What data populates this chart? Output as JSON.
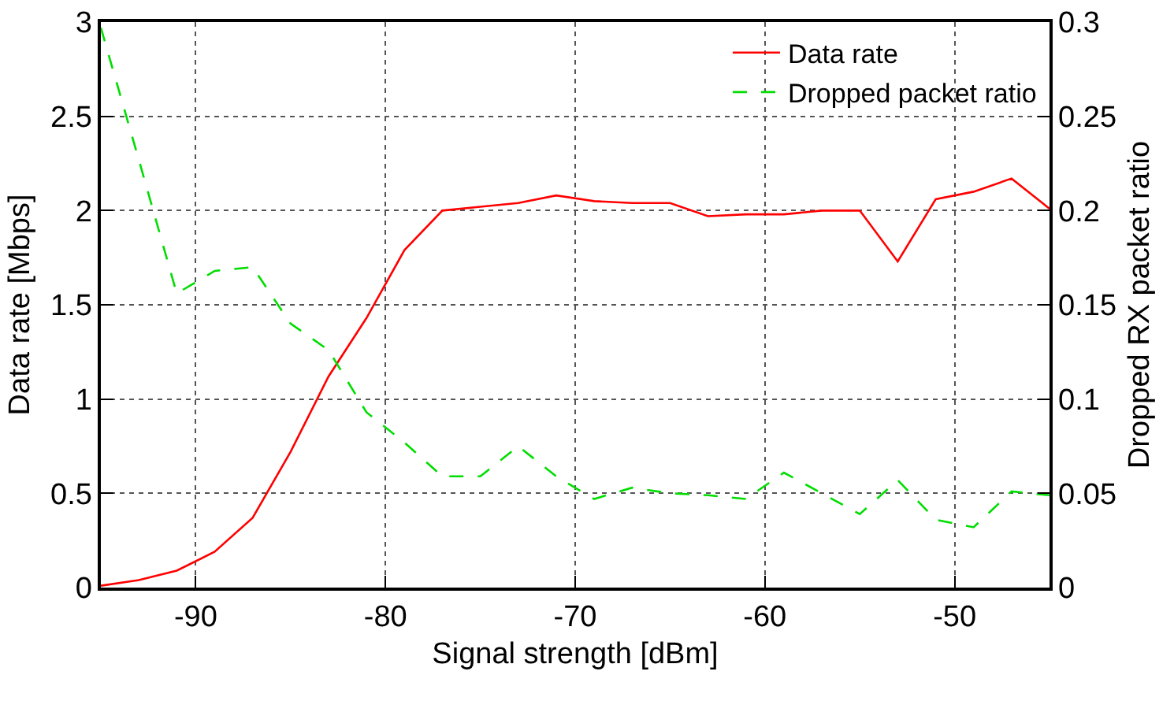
{
  "chart_data": {
    "type": "line",
    "x": [
      -95,
      -93,
      -91,
      -89,
      -87,
      -85,
      -83,
      -81,
      -79,
      -77,
      -75,
      -73,
      -71,
      -69,
      -67,
      -65,
      -63,
      -61,
      -59,
      -57,
      -55,
      -53,
      -51,
      -49,
      -47,
      -45
    ],
    "series": [
      {
        "name": "Data rate",
        "color": "#ff0000",
        "line_style": "solid",
        "values": [
          0.01,
          0.04,
          0.09,
          0.19,
          0.37,
          0.72,
          1.12,
          1.43,
          1.79,
          2.0,
          2.02,
          2.04,
          2.08,
          2.05,
          2.04,
          2.04,
          1.97,
          1.98,
          1.98,
          2.0,
          2.0,
          1.73,
          2.06,
          2.1,
          2.17,
          2.01
        ]
      },
      {
        "name": "Dropped packet ratio",
        "color": "#00dd00",
        "line_style": "dashed",
        "axis": "y2",
        "values": [
          0.297,
          0.227,
          0.156,
          0.168,
          0.17,
          0.14,
          0.126,
          0.093,
          0.077,
          0.059,
          0.059,
          0.075,
          0.059,
          0.047,
          0.053,
          0.05,
          0.049,
          0.047,
          0.061,
          0.05,
          0.039,
          0.057,
          0.036,
          0.032,
          0.051,
          0.049
        ]
      }
    ],
    "xlabel": "Signal strength [dBm]",
    "ylabel": "Data rate [Mbps]",
    "y2label": "Dropped RX packet ratio",
    "xlim": [
      -95,
      -45
    ],
    "xticks": [
      -90,
      -80,
      -70,
      -60,
      -50
    ],
    "ylim": [
      0,
      3
    ],
    "yticks": [
      0,
      0.5,
      1,
      1.5,
      2,
      2.5,
      3
    ],
    "y2lim": [
      0,
      0.3
    ],
    "y2ticks": [
      0,
      0.05,
      0.1,
      0.15,
      0.2,
      0.25,
      0.3
    ],
    "grid": true,
    "legend": "top right"
  }
}
